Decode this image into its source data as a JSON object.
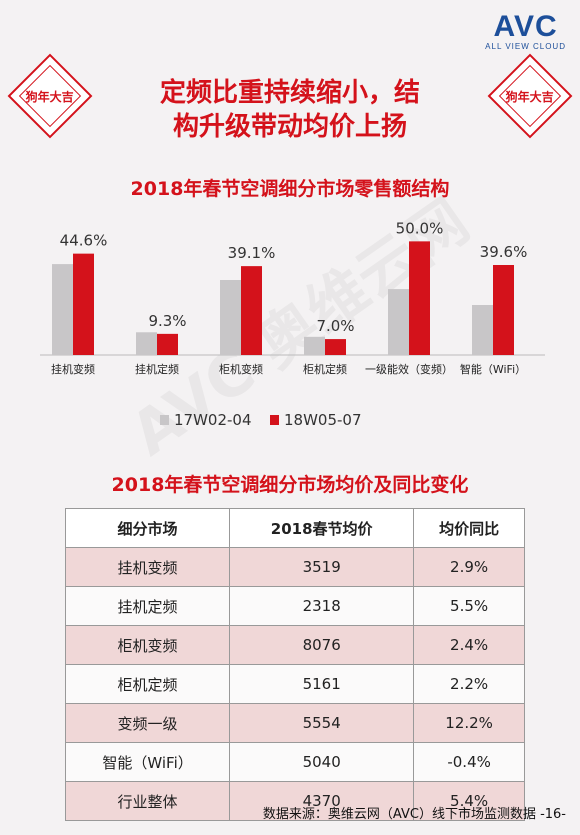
{
  "brand": {
    "logo": "AVC",
    "logo_sub": "ALL VIEW CLOUD"
  },
  "badge_text": "狗年大吉",
  "headline": [
    "定频比重持续缩小，结",
    "构升级带动均价上扬"
  ],
  "chart_title": "2018年春节空调细分市场零售额结构",
  "chart_data": {
    "type": "bar",
    "title": "2018年春节空调细分市场零售额结构",
    "categories": [
      "挂机变频",
      "挂机定频",
      "柜机变频",
      "柜机定频",
      "一级能效（变频）",
      "智能（WiFi）"
    ],
    "series": [
      {
        "name": "17W02-04",
        "values": [
          40.0,
          10.0,
          33.0,
          8.0,
          29.0,
          22.0
        ]
      },
      {
        "name": "18W05-07",
        "values": [
          44.6,
          9.3,
          39.1,
          7.0,
          50.0,
          39.6
        ]
      }
    ],
    "data_labels": [
      "44.6%",
      "9.3%",
      "39.1%",
      "7.0%",
      "50.0%",
      "39.6%"
    ],
    "ylim": [
      0,
      55
    ],
    "legend": "bottom",
    "colors": [
      "#c8c6c8",
      "#d4121b"
    ]
  },
  "table_title": "2018年春节空调细分市场均价及同比变化",
  "table": {
    "headers": [
      "细分市场",
      "2018春节均价",
      "均价同比"
    ],
    "rows": [
      [
        "挂机变频",
        "3519",
        "2.9%"
      ],
      [
        "挂机定频",
        "2318",
        "5.5%"
      ],
      [
        "柜机变频",
        "8076",
        "2.4%"
      ],
      [
        "柜机定频",
        "5161",
        "2.2%"
      ],
      [
        "变频一级",
        "5554",
        "12.2%"
      ],
      [
        "智能（WiFi）",
        "5040",
        "-0.4%"
      ],
      [
        "行业整体",
        "4370",
        "5.4%"
      ]
    ]
  },
  "source": "数据来源：奥维云网（AVC）线下市场监测数据 -16-",
  "watermark": "AVC 奥维云网"
}
